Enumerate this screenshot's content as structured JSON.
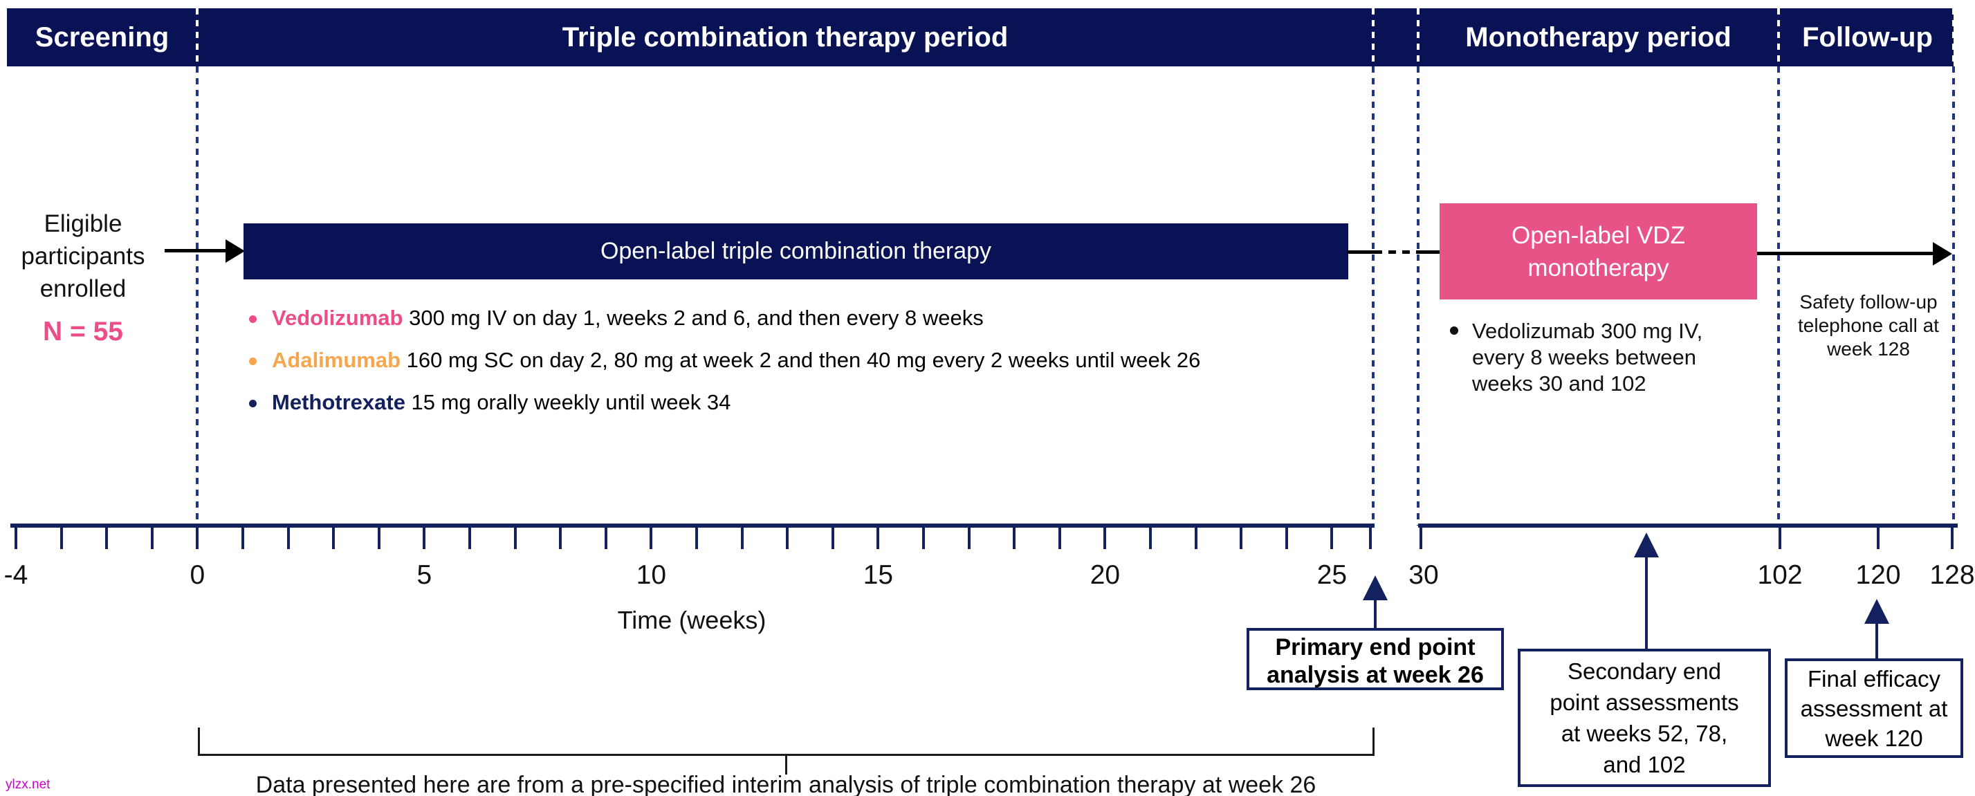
{
  "header": {
    "sections": [
      {
        "id": "screening",
        "label": "Screening"
      },
      {
        "id": "triple",
        "label": "Triple combination therapy period"
      },
      {
        "id": "monotherapy",
        "label": "Monotherapy period"
      },
      {
        "id": "followup",
        "label": "Follow-up"
      }
    ]
  },
  "enrollment": {
    "lines": [
      "Eligible",
      "participants",
      "enrolled"
    ],
    "n_label": "N = 55"
  },
  "triple_period": {
    "bar_label": "Open-label triple combination therapy",
    "bullets": [
      {
        "drug": "Vedolizumab",
        "color": "#EE4C86",
        "text": "300 mg IV on day 1, weeks 2 and 6, and then every 8 weeks"
      },
      {
        "drug": "Adalimumab",
        "color": "#F6A64C",
        "text": "160 mg SC on day 2, 80 mg at week 2 and then 40 mg every 2 weeks until week 26"
      },
      {
        "drug": "Methotrexate",
        "color": "#13205E",
        "text": "15 mg orally weekly until week 34"
      }
    ]
  },
  "monotherapy_period": {
    "box_lines": [
      "Open-label VDZ",
      "monotherapy"
    ],
    "bullet_lines": [
      "Vedolizumab 300 mg IV,",
      "every 8 weeks between",
      "weeks 30 and 102"
    ]
  },
  "followup_period": {
    "note_lines": [
      "Safety follow-up",
      "telephone call at",
      "week 128"
    ]
  },
  "timeline": {
    "axis_label": "Time (weeks)",
    "minor_tick_weeks": {
      "start": -4,
      "end": 26,
      "step": 1
    },
    "labeled_weeks_left": [
      -4,
      0,
      5,
      10,
      15,
      20,
      25
    ],
    "labeled_weeks_right": [
      30,
      102,
      120,
      128
    ],
    "axis_break_between": [
      26,
      30
    ]
  },
  "endpoints": {
    "primary": {
      "lines": [
        "Primary end point",
        "analysis at week 26"
      ]
    },
    "secondary": {
      "lines": [
        "Secondary end",
        "point assessments",
        "at weeks 52, 78,",
        "and 102"
      ]
    },
    "final": {
      "lines": [
        "Final efficacy",
        "assessment at",
        "week 120"
      ]
    }
  },
  "caption": "Data presented here are from a pre-specified interim analysis of triple combination therapy at week 26",
  "watermark": "ylzx.net",
  "colors": {
    "navy_fill": "#081254",
    "navy_line": "#14215F",
    "pink": "#E75287",
    "pink_text": "#EE4C86",
    "orange": "#F6A64C",
    "watermark": "#CC00CC"
  }
}
